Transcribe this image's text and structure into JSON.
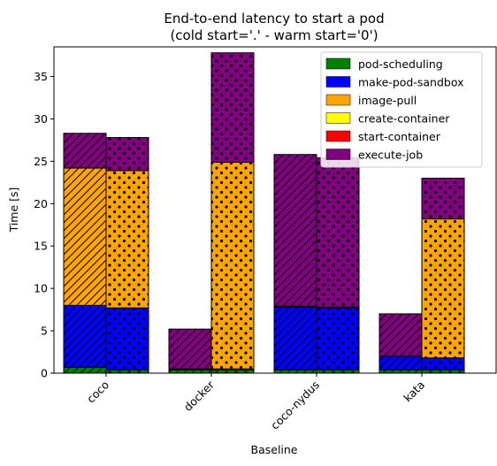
{
  "chart_data": {
    "type": "bar",
    "stacked": true,
    "title_lines": [
      "End-to-end latency to start a pod",
      "(cold start='.' - warm start='0')"
    ],
    "xlabel": "Baseline",
    "ylabel": "Time [s]",
    "ylim": [
      0,
      38.5
    ],
    "yticks": [
      0,
      5,
      10,
      15,
      20,
      25,
      30,
      35
    ],
    "categories": [
      "coco",
      "docker",
      "coco-nydus",
      "kata"
    ],
    "grid": false,
    "legend_position": "top-right",
    "series": [
      {
        "name": "pod-scheduling",
        "color": "#008000",
        "warm": [
          0.7,
          0.4,
          0.4,
          0.4
        ],
        "cold": [
          0.4,
          0.4,
          0.4,
          0.4
        ]
      },
      {
        "name": "make-pod-sandbox",
        "color": "#0000ff",
        "warm": [
          7.3,
          0.1,
          7.4,
          1.6
        ],
        "cold": [
          7.3,
          0.1,
          7.3,
          1.4
        ]
      },
      {
        "name": "image-pull",
        "color": "#ffa500",
        "warm": [
          16.2,
          0.0,
          0.1,
          0.0
        ],
        "cold": [
          16.2,
          24.4,
          0.1,
          16.4
        ]
      },
      {
        "name": "create-container",
        "color": "#ffff00",
        "warm": [
          0.0,
          0.0,
          0.0,
          0.0
        ],
        "cold": [
          0.0,
          0.0,
          0.0,
          0.0
        ]
      },
      {
        "name": "start-container",
        "color": "#ff0000",
        "warm": [
          0.0,
          0.0,
          0.0,
          0.0
        ],
        "cold": [
          0.0,
          0.0,
          0.0,
          0.0
        ]
      },
      {
        "name": "execute-job",
        "color": "#800080",
        "warm": [
          4.1,
          4.7,
          17.9,
          5.0
        ],
        "cold": [
          3.9,
          12.9,
          17.6,
          4.8
        ]
      }
    ]
  }
}
